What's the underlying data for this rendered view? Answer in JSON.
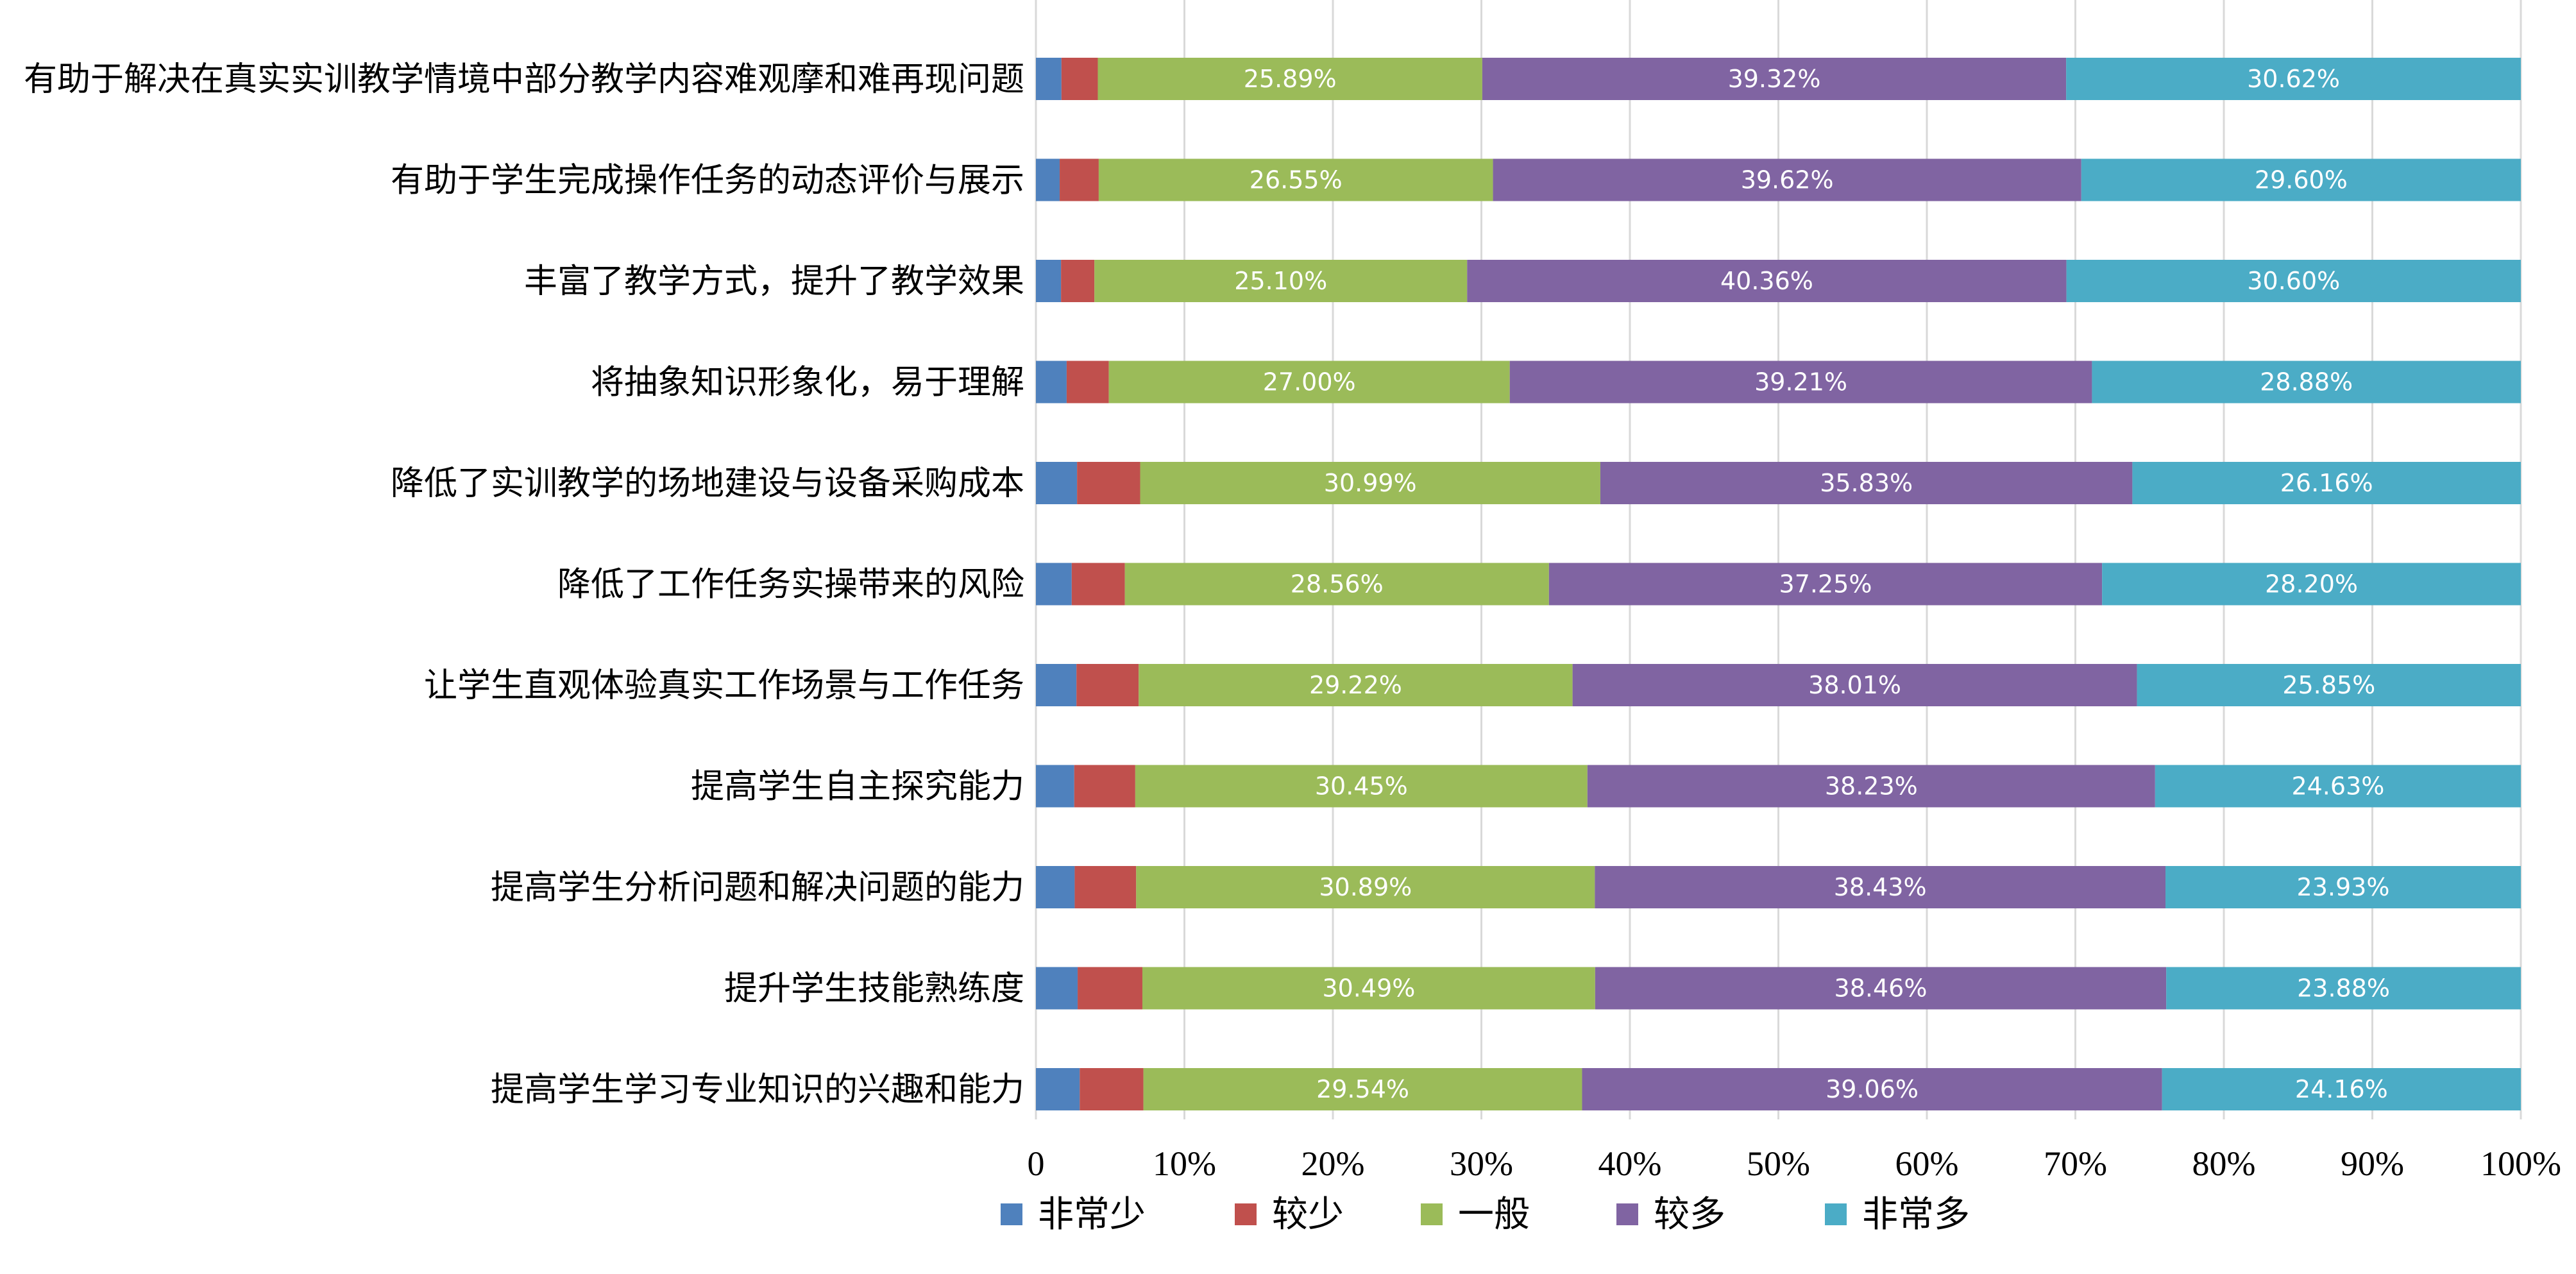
{
  "chart_data": {
    "type": "bar",
    "orientation": "horizontal",
    "stacked": true,
    "percent_stacked": true,
    "categories": [
      "有助于解决在真实实训教学情境中部分教学内容难观摩和难再现问题",
      "有助于学生完成操作任务的动态评价与展示",
      "丰富了教学方式，提升了教学效果",
      "将抽象知识形象化，易于理解",
      "降低了实训教学的场地建设与设备采购成本",
      "降低了工作任务实操带来的风险",
      "让学生直观体验真实工作场景与工作任务",
      "提高学生自主探究能力",
      "提高学生分析问题和解决问题的能力",
      "提升学生技能熟练度",
      "提高学生学习专业知识的兴趣和能力"
    ],
    "series": [
      {
        "name": "非常少",
        "color": "#4F81BD",
        "values": [
          1.72,
          1.6,
          1.69,
          2.07,
          2.77,
          2.41,
          2.73,
          2.58,
          2.61,
          2.81,
          2.95
        ]
      },
      {
        "name": "较少",
        "color": "#C0504D",
        "values": [
          2.45,
          2.63,
          2.25,
          2.84,
          4.25,
          3.58,
          4.19,
          4.11,
          4.14,
          4.36,
          4.29
        ]
      },
      {
        "name": "一般",
        "color": "#9BBB59",
        "values": [
          25.89,
          26.55,
          25.1,
          27.0,
          30.99,
          28.56,
          29.22,
          30.45,
          30.89,
          30.49,
          29.54
        ],
        "labels": [
          "25.89%",
          "26.55%",
          "25.10%",
          "27.00%",
          "30.99%",
          "28.56%",
          "29.22%",
          "30.45%",
          "30.89%",
          "30.49%",
          "29.54%"
        ]
      },
      {
        "name": "较多",
        "color": "#8064A2",
        "values": [
          39.32,
          39.62,
          40.36,
          39.21,
          35.83,
          37.25,
          38.01,
          38.23,
          38.43,
          38.46,
          39.06
        ],
        "labels": [
          "39.32%",
          "39.62%",
          "40.36%",
          "39.21%",
          "35.83%",
          "37.25%",
          "38.01%",
          "38.23%",
          "38.43%",
          "38.46%",
          "39.06%"
        ]
      },
      {
        "name": "非常多",
        "color": "#4BACC6",
        "values": [
          30.62,
          29.6,
          30.6,
          28.88,
          26.16,
          28.2,
          25.85,
          24.63,
          23.93,
          23.88,
          24.16
        ],
        "labels": [
          "30.62%",
          "29.60%",
          "30.60%",
          "28.88%",
          "26.16%",
          "28.20%",
          "25.85%",
          "24.63%",
          "23.93%",
          "23.88%",
          "24.16%"
        ]
      }
    ],
    "xlim": [
      0,
      100
    ],
    "x_ticks": [
      "0",
      "10%",
      "20%",
      "30%",
      "40%",
      "50%",
      "60%",
      "70%",
      "80%",
      "90%",
      "100%"
    ],
    "grid": true,
    "legend_position": "bottom",
    "title": "",
    "xlabel": "",
    "ylabel": ""
  }
}
